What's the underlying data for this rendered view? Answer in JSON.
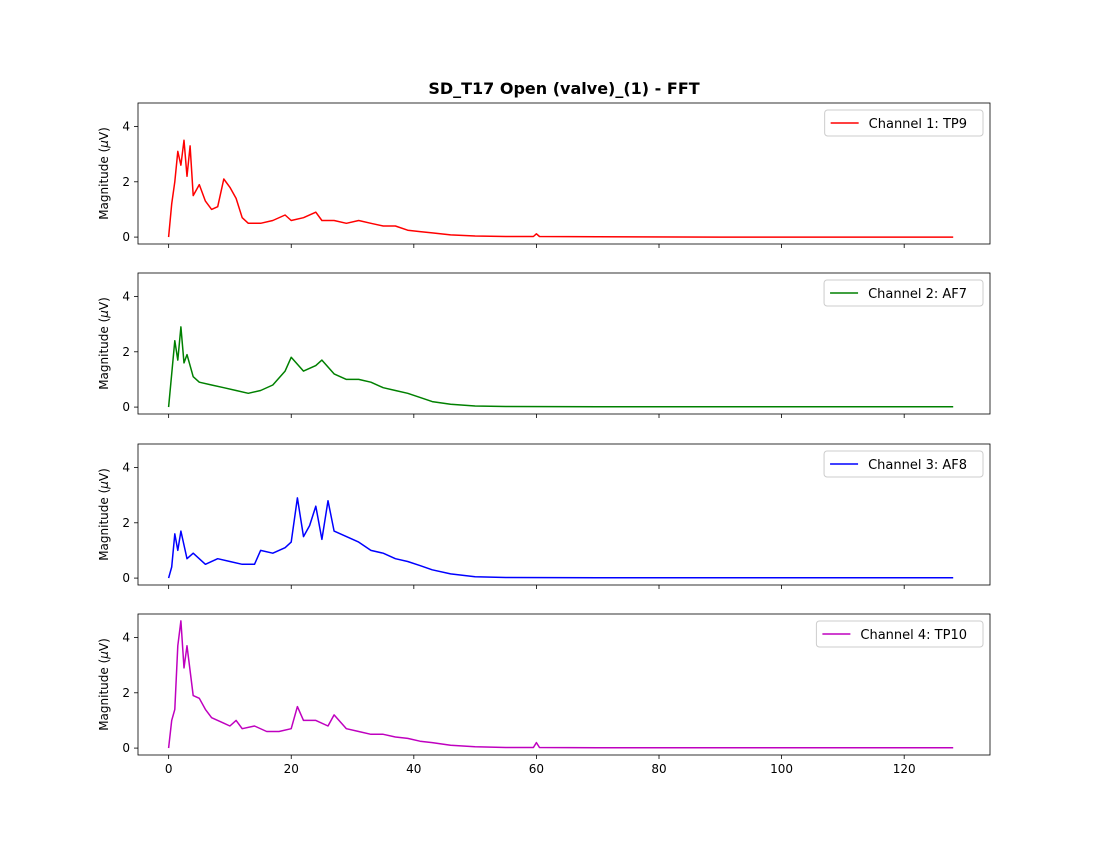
{
  "title": "SD_T17 Open (valve)_(1) - FFT",
  "chart_data": {
    "type": "line",
    "title": "SD_T17 Open (valve)_(1) - FFT",
    "xlim": [
      -5,
      134
    ],
    "ylim": [
      -0.25,
      4.85
    ],
    "x_ticks": [
      0,
      20,
      40,
      60,
      80,
      100,
      120
    ],
    "y_ticks": [
      0,
      2,
      4
    ],
    "ylabel_parts": [
      "Magnitude (",
      "μ",
      "V)"
    ],
    "grid": false,
    "legend_position": "upper right",
    "series": [
      {
        "name": "Channel 1: TP9",
        "color": "#ff0000",
        "points": [
          [
            0,
            0.0
          ],
          [
            0.5,
            1.2
          ],
          [
            1,
            2.0
          ],
          [
            1.5,
            3.1
          ],
          [
            2,
            2.6
          ],
          [
            2.5,
            3.5
          ],
          [
            3,
            2.2
          ],
          [
            3.5,
            3.3
          ],
          [
            4,
            1.5
          ],
          [
            5,
            1.9
          ],
          [
            6,
            1.3
          ],
          [
            7,
            1.0
          ],
          [
            8,
            1.1
          ],
          [
            9,
            2.1
          ],
          [
            10,
            1.8
          ],
          [
            11,
            1.4
          ],
          [
            12,
            0.7
          ],
          [
            13,
            0.5
          ],
          [
            15,
            0.5
          ],
          [
            17,
            0.6
          ],
          [
            19,
            0.8
          ],
          [
            20,
            0.6
          ],
          [
            22,
            0.7
          ],
          [
            24,
            0.9
          ],
          [
            25,
            0.6
          ],
          [
            27,
            0.6
          ],
          [
            29,
            0.5
          ],
          [
            31,
            0.6
          ],
          [
            33,
            0.5
          ],
          [
            35,
            0.4
          ],
          [
            37,
            0.4
          ],
          [
            39,
            0.25
          ],
          [
            41,
            0.2
          ],
          [
            43,
            0.15
          ],
          [
            46,
            0.08
          ],
          [
            50,
            0.04
          ],
          [
            55,
            0.02
          ],
          [
            59.5,
            0.02
          ],
          [
            60,
            0.12
          ],
          [
            60.5,
            0.02
          ],
          [
            70,
            0.01
          ],
          [
            90,
            0.0
          ],
          [
            128,
            0.0
          ]
        ]
      },
      {
        "name": "Channel 2: AF7",
        "color": "#008000",
        "points": [
          [
            0,
            0.0
          ],
          [
            0.5,
            1.2
          ],
          [
            1,
            2.4
          ],
          [
            1.5,
            1.7
          ],
          [
            2,
            2.9
          ],
          [
            2.5,
            1.6
          ],
          [
            3,
            1.9
          ],
          [
            4,
            1.1
          ],
          [
            5,
            0.9
          ],
          [
            7,
            0.8
          ],
          [
            9,
            0.7
          ],
          [
            11,
            0.6
          ],
          [
            13,
            0.5
          ],
          [
            15,
            0.6
          ],
          [
            17,
            0.8
          ],
          [
            19,
            1.3
          ],
          [
            20,
            1.8
          ],
          [
            22,
            1.3
          ],
          [
            24,
            1.5
          ],
          [
            25,
            1.7
          ],
          [
            27,
            1.2
          ],
          [
            29,
            1.0
          ],
          [
            31,
            1.0
          ],
          [
            33,
            0.9
          ],
          [
            35,
            0.7
          ],
          [
            37,
            0.6
          ],
          [
            39,
            0.5
          ],
          [
            41,
            0.35
          ],
          [
            43,
            0.2
          ],
          [
            46,
            0.1
          ],
          [
            50,
            0.04
          ],
          [
            55,
            0.02
          ],
          [
            70,
            0.01
          ],
          [
            90,
            0.01
          ],
          [
            128,
            0.01
          ]
        ]
      },
      {
        "name": "Channel 3: AF8",
        "color": "#0000ff",
        "points": [
          [
            0,
            0.0
          ],
          [
            0.5,
            0.4
          ],
          [
            1,
            1.6
          ],
          [
            1.5,
            1.0
          ],
          [
            2,
            1.7
          ],
          [
            3,
            0.7
          ],
          [
            4,
            0.9
          ],
          [
            6,
            0.5
          ],
          [
            8,
            0.7
          ],
          [
            10,
            0.6
          ],
          [
            12,
            0.5
          ],
          [
            14,
            0.5
          ],
          [
            15,
            1.0
          ],
          [
            17,
            0.9
          ],
          [
            19,
            1.1
          ],
          [
            20,
            1.3
          ],
          [
            21,
            2.9
          ],
          [
            22,
            1.5
          ],
          [
            23,
            1.9
          ],
          [
            24,
            2.6
          ],
          [
            25,
            1.4
          ],
          [
            26,
            2.8
          ],
          [
            27,
            1.7
          ],
          [
            29,
            1.5
          ],
          [
            31,
            1.3
          ],
          [
            33,
            1.0
          ],
          [
            35,
            0.9
          ],
          [
            37,
            0.7
          ],
          [
            39,
            0.6
          ],
          [
            41,
            0.45
          ],
          [
            43,
            0.3
          ],
          [
            46,
            0.15
          ],
          [
            50,
            0.05
          ],
          [
            55,
            0.02
          ],
          [
            70,
            0.01
          ],
          [
            90,
            0.01
          ],
          [
            128,
            0.01
          ]
        ]
      },
      {
        "name": "Channel 4: TP10",
        "color": "#bf00bf",
        "points": [
          [
            0,
            0.0
          ],
          [
            0.5,
            1.0
          ],
          [
            1,
            1.4
          ],
          [
            1.5,
            3.7
          ],
          [
            2,
            4.6
          ],
          [
            2.5,
            2.9
          ],
          [
            3,
            3.7
          ],
          [
            4,
            1.9
          ],
          [
            5,
            1.8
          ],
          [
            6,
            1.4
          ],
          [
            7,
            1.1
          ],
          [
            8,
            1.0
          ],
          [
            9,
            0.9
          ],
          [
            10,
            0.8
          ],
          [
            11,
            1.0
          ],
          [
            12,
            0.7
          ],
          [
            14,
            0.8
          ],
          [
            16,
            0.6
          ],
          [
            18,
            0.6
          ],
          [
            20,
            0.7
          ],
          [
            21,
            1.5
          ],
          [
            22,
            1.0
          ],
          [
            24,
            1.0
          ],
          [
            26,
            0.8
          ],
          [
            27,
            1.2
          ],
          [
            29,
            0.7
          ],
          [
            31,
            0.6
          ],
          [
            33,
            0.5
          ],
          [
            35,
            0.5
          ],
          [
            37,
            0.4
          ],
          [
            39,
            0.35
          ],
          [
            41,
            0.25
          ],
          [
            43,
            0.2
          ],
          [
            46,
            0.1
          ],
          [
            50,
            0.05
          ],
          [
            55,
            0.02
          ],
          [
            59.5,
            0.02
          ],
          [
            60,
            0.2
          ],
          [
            60.5,
            0.02
          ],
          [
            70,
            0.01
          ],
          [
            90,
            0.01
          ],
          [
            128,
            0.01
          ]
        ]
      }
    ]
  }
}
